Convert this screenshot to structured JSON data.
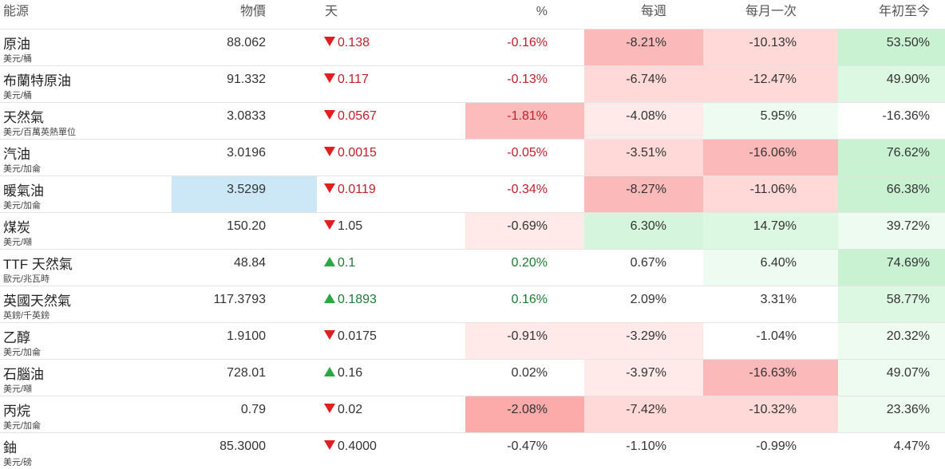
{
  "table": {
    "header": [
      "能源",
      "物價",
      "天",
      "%",
      "每週",
      "每月一次",
      "年初至今"
    ],
    "rows": [
      {
        "name": "原油",
        "unit": "美元/桶",
        "price": "88.062",
        "change": "0.138",
        "direction": "down",
        "pct": "-0.16%",
        "week": "-8.21%",
        "month": "-10.13%",
        "ytd": "53.50%",
        "tone": "red",
        "colors": [
          "#ffffff",
          "#fcb9b9",
          "#ffd8d8",
          "#c9f2d2"
        ]
      },
      {
        "name": "布蘭特原油",
        "unit": "美元/桶",
        "price": "91.332",
        "change": "0.117",
        "direction": "down",
        "pct": "-0.13%",
        "week": "-6.74%",
        "month": "-12.47%",
        "ytd": "49.90%",
        "tone": "red",
        "colors": [
          "#ffffff",
          "#ffd8d8",
          "#ffd8d8",
          "#dcf7e2"
        ]
      },
      {
        "name": "天然氣",
        "unit": "美元/百萬英熱單位",
        "price": "3.0833",
        "change": "0.0567",
        "direction": "down",
        "pct": "-1.81%",
        "week": "-4.08%",
        "month": "5.95%",
        "ytd": "-16.36%",
        "tone": "red",
        "colors": [
          "#fcbcbc",
          "#ffe9e9",
          "#edfbf0",
          "#ffffff"
        ]
      },
      {
        "name": "汽油",
        "unit": "美元/加侖",
        "price": "3.0196",
        "change": "0.0015",
        "direction": "down",
        "pct": "-0.05%",
        "week": "-3.51%",
        "month": "-16.06%",
        "ytd": "76.62%",
        "tone": "red",
        "colors": [
          "#ffffff",
          "#ffd8d8",
          "#fcb9b9",
          "#c9f2d2"
        ]
      },
      {
        "name": "暖氣油",
        "unit": "美元/加侖",
        "price": "3.5299",
        "change": "0.0119",
        "direction": "down",
        "pct": "-0.34%",
        "week": "-8.27%",
        "month": "-11.06%",
        "ytd": "66.38%",
        "tone": "red",
        "colors": [
          "#ffffff",
          "#fcb9b9",
          "#ffd8d8",
          "#c9f2d2"
        ],
        "price_color": "#cce8f6"
      },
      {
        "name": "煤炭",
        "unit": "美元/噸",
        "price": "150.20",
        "change": "1.05",
        "direction": "down",
        "pct": "-0.69%",
        "week": "6.30%",
        "month": "14.79%",
        "ytd": "39.72%",
        "tone": "plain",
        "colors": [
          "#ffe9e9",
          "#d5f5dc",
          "#dcf7e2",
          "#edfbf0"
        ]
      },
      {
        "name": "TTF 天然氣",
        "unit": "歐元/兆瓦時",
        "price": "48.84",
        "change": "0.1",
        "direction": "up",
        "pct": "0.20%",
        "week": "0.67%",
        "month": "6.40%",
        "ytd": "74.69%",
        "tone": "green",
        "colors": [
          "#ffffff",
          "#ffffff",
          "#edfbf0",
          "#c9f2d2"
        ]
      },
      {
        "name": "英國天然氣",
        "unit": "英鎊/千英鎊",
        "price": "117.3793",
        "change": "0.1893",
        "direction": "up",
        "pct": "0.16%",
        "week": "2.09%",
        "month": "3.31%",
        "ytd": "58.77%",
        "tone": "green",
        "colors": [
          "#ffffff",
          "#ffffff",
          "#ffffff",
          "#dcf7e2"
        ]
      },
      {
        "name": "乙醇",
        "unit": "美元/加侖",
        "price": "1.9100",
        "change": "0.0175",
        "direction": "down",
        "pct": "-0.91%",
        "week": "-3.29%",
        "month": "-1.04%",
        "ytd": "20.32%",
        "tone": "plain",
        "colors": [
          "#ffe9e9",
          "#ffe9e9",
          "#ffffff",
          "#edfbf0"
        ]
      },
      {
        "name": "石腦油",
        "unit": "美元/噸",
        "price": "728.01",
        "change": "0.16",
        "direction": "up",
        "pct": "0.02%",
        "week": "-3.97%",
        "month": "-16.63%",
        "ytd": "49.07%",
        "tone": "plain",
        "colors": [
          "#ffffff",
          "#ffe9e9",
          "#fcb9b9",
          "#edfbf0"
        ]
      },
      {
        "name": "丙烷",
        "unit": "美元/加侖",
        "price": "0.79",
        "change": "0.02",
        "direction": "down",
        "pct": "-2.08%",
        "week": "-7.42%",
        "month": "-10.32%",
        "ytd": "23.36%",
        "tone": "plain",
        "colors": [
          "#fcaaaa",
          "#ffd8d8",
          "#ffd8d8",
          "#edfbf0"
        ]
      },
      {
        "name": "鈾",
        "unit": "美元/磅",
        "price": "85.3000",
        "change": "0.4000",
        "direction": "down",
        "pct": "-0.47%",
        "week": "-1.10%",
        "month": "-0.99%",
        "ytd": "4.47%",
        "tone": "plain",
        "colors": [
          "#ffffff",
          "#ffffff",
          "#ffffff",
          "#ffffff"
        ]
      }
    ]
  }
}
